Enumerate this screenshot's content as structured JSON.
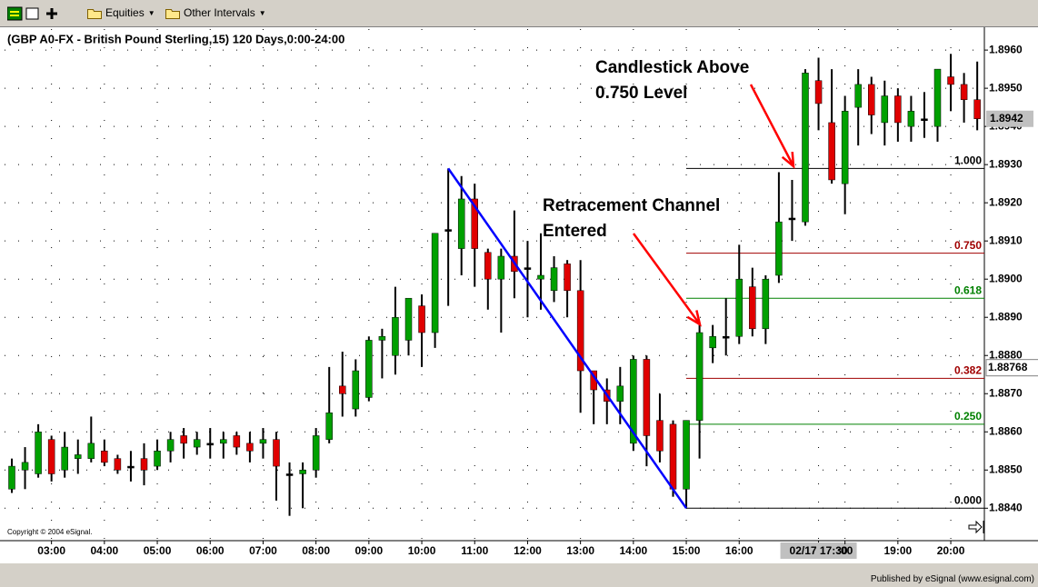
{
  "toolbar": {
    "items": [
      "Equities",
      "Other Intervals"
    ]
  },
  "chart_data": {
    "type": "candlestick",
    "title": "(GBP A0-FX - British Pound Sterling,15) 120 Days,0:00-24:00",
    "copyright": "Copyright © 2004 eSignal.",
    "categories": [
      null,
      null,
      null,
      "03:00",
      null,
      null,
      null,
      "04:00",
      null,
      null,
      null,
      "05:00",
      null,
      null,
      null,
      "06:00",
      null,
      null,
      null,
      "07:00",
      null,
      null,
      null,
      "08:00",
      null,
      null,
      null,
      "09:00",
      null,
      null,
      null,
      "10:00",
      null,
      null,
      null,
      "11:00",
      null,
      null,
      null,
      "12:00",
      null,
      null,
      null,
      "13:00",
      null,
      null,
      null,
      "14:00",
      null,
      null,
      null,
      "15:00",
      null,
      null,
      null,
      "16:00",
      null,
      null,
      null,
      null,
      null,
      "02/17 17:30",
      null,
      ":00",
      null,
      null,
      null,
      "19:00",
      null,
      null,
      null,
      "20:00",
      null,
      null
    ],
    "open": [
      1.8845,
      1.885,
      1.8849,
      1.8858,
      1.885,
      1.8853,
      1.8853,
      1.8855,
      1.8853,
      1.8851,
      1.8853,
      1.8851,
      1.8855,
      1.8859,
      1.8856,
      1.8857,
      1.8857,
      1.8859,
      1.8857,
      1.8857,
      1.8858,
      1.8849,
      1.8849,
      1.885,
      1.8858,
      1.8872,
      1.8866,
      1.8869,
      1.8884,
      1.888,
      1.8884,
      1.8893,
      1.8886,
      1.8913,
      1.8908,
      1.8921,
      1.8907,
      1.89,
      1.8906,
      1.8903,
      1.89,
      1.8897,
      1.8904,
      1.8897,
      1.8876,
      1.8871,
      1.8868,
      1.8857,
      1.8879,
      1.8863,
      1.8862,
      1.8845,
      1.8863,
      1.8882,
      1.8885,
      1.8885,
      1.8898,
      1.8887,
      1.8901,
      1.8916,
      1.8915,
      1.8952,
      1.8941,
      1.8925,
      1.8945,
      1.8951,
      1.8941,
      1.8948,
      1.894,
      1.8942,
      1.894,
      1.8953,
      1.8951,
      1.8947
    ],
    "high": [
      1.8853,
      1.8856,
      1.8862,
      1.8859,
      1.886,
      1.8858,
      1.8864,
      1.8858,
      1.8854,
      1.8855,
      1.8857,
      1.8858,
      1.886,
      1.8861,
      1.886,
      1.8861,
      1.886,
      1.886,
      1.886,
      1.8861,
      1.886,
      1.8852,
      1.8852,
      1.8861,
      1.8877,
      1.8881,
      1.8879,
      1.8885,
      1.8887,
      1.8898,
      1.8895,
      1.8896,
      1.8912,
      1.8929,
      1.8927,
      1.8925,
      1.8908,
      1.8908,
      1.8918,
      1.891,
      1.8912,
      1.8906,
      1.8905,
      1.8905,
      1.8876,
      1.8874,
      1.8877,
      1.888,
      1.888,
      1.887,
      1.8863,
      1.8863,
      1.8888,
      1.8888,
      1.8895,
      1.8909,
      1.8903,
      1.8901,
      1.8928,
      1.8926,
      1.8955,
      1.8958,
      1.8955,
      1.8948,
      1.8955,
      1.8953,
      1.8952,
      1.895,
      1.8948,
      1.8949,
      1.8955,
      1.8959,
      1.8954,
      1.8957
    ],
    "low": [
      1.8844,
      1.8845,
      1.8848,
      1.8847,
      1.8848,
      1.8849,
      1.8852,
      1.8851,
      1.8849,
      1.8847,
      1.8846,
      1.885,
      1.8852,
      1.8853,
      1.8854,
      1.8853,
      1.8853,
      1.8854,
      1.8852,
      1.8853,
      1.8842,
      1.8838,
      1.884,
      1.8848,
      1.8857,
      1.8864,
      1.8864,
      1.8868,
      1.8874,
      1.8875,
      1.888,
      1.8877,
      1.8882,
      1.8893,
      1.8901,
      1.8898,
      1.8892,
      1.8886,
      1.8895,
      1.889,
      1.8892,
      1.8894,
      1.889,
      1.8865,
      1.8862,
      1.8862,
      1.8862,
      1.8855,
      1.8851,
      1.8852,
      1.8843,
      1.884,
      1.8853,
      1.8878,
      1.888,
      1.8883,
      1.8885,
      1.8883,
      1.8899,
      1.891,
      1.8914,
      1.8939,
      1.8925,
      1.8917,
      1.8935,
      1.8938,
      1.8935,
      1.8936,
      1.8936,
      1.8937,
      1.8936,
      1.8944,
      1.8941,
      1.8939
    ],
    "close": [
      1.8851,
      1.8852,
      1.886,
      1.8849,
      1.8856,
      1.8854,
      1.8857,
      1.8852,
      1.885,
      1.8851,
      1.885,
      1.8855,
      1.8858,
      1.8857,
      1.8858,
      1.8857,
      1.8858,
      1.8856,
      1.8855,
      1.8858,
      1.8851,
      1.8849,
      1.885,
      1.8859,
      1.8865,
      1.887,
      1.8876,
      1.8884,
      1.8885,
      1.889,
      1.8895,
      1.8886,
      1.8912,
      1.8913,
      1.8921,
      1.8908,
      1.89,
      1.8906,
      1.8902,
      1.8903,
      1.8901,
      1.8903,
      1.8897,
      1.8876,
      1.8871,
      1.8868,
      1.8872,
      1.8879,
      1.8859,
      1.8855,
      1.8845,
      1.8863,
      1.8886,
      1.8885,
      1.8885,
      1.89,
      1.8887,
      1.89,
      1.8915,
      1.8916,
      1.8954,
      1.8946,
      1.8926,
      1.8944,
      1.8951,
      1.8943,
      1.8948,
      1.8941,
      1.8944,
      1.8942,
      1.8955,
      1.8951,
      1.8947,
      1.8942
    ],
    "up_color": "#00a000",
    "down_color": "#e00000",
    "doji_color": "#000000",
    "ylim": [
      1.88315,
      1.89655
    ],
    "yticks": [
      {
        "value": 1.884,
        "label": "1.8840"
      },
      {
        "value": 1.885,
        "label": "1.8850"
      },
      {
        "value": 1.886,
        "label": "1.8860"
      },
      {
        "value": 1.887,
        "label": "1.8870"
      },
      {
        "value": 1.888,
        "label": "1.8880"
      },
      {
        "value": 1.889,
        "label": "1.8890"
      },
      {
        "value": 1.89,
        "label": "1.8900"
      },
      {
        "value": 1.891,
        "label": "1.8910"
      },
      {
        "value": 1.892,
        "label": "1.8920"
      },
      {
        "value": 1.893,
        "label": "1.8930"
      },
      {
        "value": 1.894,
        "label": "1.8940"
      },
      {
        "value": 1.895,
        "label": "1.8950"
      },
      {
        "value": 1.896,
        "label": "1.8960"
      }
    ],
    "grid": true,
    "last_price": {
      "value": 1.8942,
      "label": "1.8942"
    },
    "cursor": {
      "price": {
        "value": 1.88768,
        "label": "1.88768"
      },
      "time_index": 61
    },
    "fib_levels": [
      {
        "value": 1,
        "label": "1.000",
        "price": 1.8929,
        "color": "#000000"
      },
      {
        "value": 0.75,
        "label": "0.750",
        "price": 1.89068,
        "color": "#a00000"
      },
      {
        "value": 0.618,
        "label": "0.618",
        "price": 1.8895,
        "color": "#008000"
      },
      {
        "value": 0.382,
        "label": "0.382",
        "price": 1.8874,
        "color": "#a00000"
      },
      {
        "value": 0.25,
        "label": "0.250",
        "price": 1.8862,
        "color": "#008000"
      },
      {
        "value": 0,
        "label": "0.000",
        "price": 1.884,
        "color": "#000000"
      }
    ],
    "trendline": {
      "color": "#0000ff",
      "x": [
        33,
        51
      ],
      "values": [
        1.8929,
        1.884
      ]
    },
    "annotations": [
      {
        "text": [
          "Candlestick Above",
          "0.750 Level"
        ],
        "color": "#ff0000"
      },
      {
        "text": [
          "Retracement Channel",
          "Entered"
        ],
        "color": "#ff0000"
      }
    ]
  },
  "footer": "Published by eSignal (www.esignal.com)"
}
